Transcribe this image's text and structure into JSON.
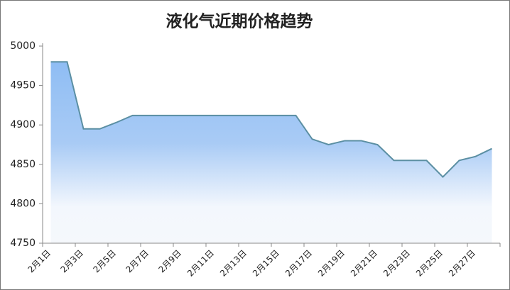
{
  "chart_data": {
    "type": "area",
    "title": "液化气近期价格趋势",
    "categories": [
      "2月1日",
      null,
      "2月3日",
      null,
      "2月5日",
      null,
      "2月7日",
      null,
      "2月9日",
      null,
      "2月11日",
      null,
      "2月13日",
      null,
      "2月15日",
      null,
      "2月17日",
      null,
      "2月19日",
      null,
      "2月21日",
      null,
      "2月23日",
      null,
      "2月25日",
      null,
      "2月27日",
      null
    ],
    "values": [
      4980,
      4980,
      4895,
      4895,
      4903,
      4912,
      4912,
      4912,
      4912,
      4912,
      4912,
      4912,
      4912,
      4912,
      4912,
      4912,
      4882,
      4875,
      4880,
      4880,
      4875,
      4855,
      4855,
      4855,
      4834,
      4855,
      4860,
      4870
    ],
    "color": "#5b8fa3",
    "ylim": [
      4750,
      5000
    ],
    "yticks": [
      4750,
      4800,
      4850,
      4900,
      4950,
      5000
    ],
    "grid": false
  }
}
